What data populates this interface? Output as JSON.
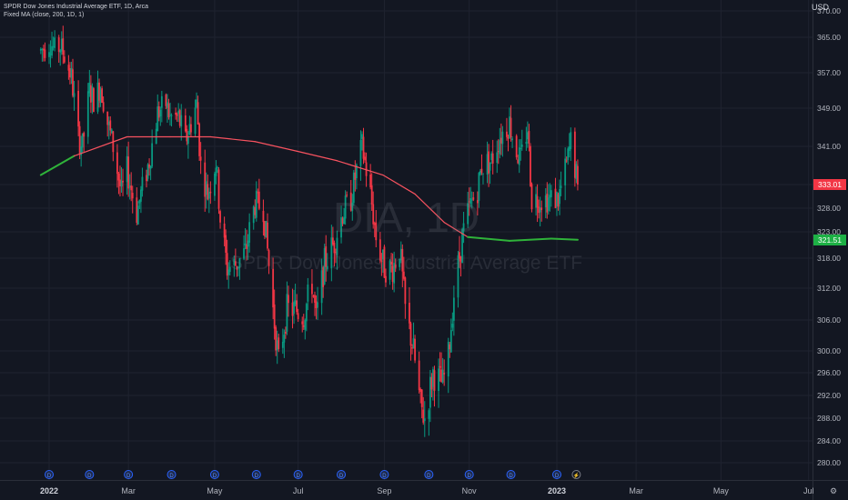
{
  "legend": {
    "title": "SPDR Dow Jones Industrial Average ETF, 1D, Arca",
    "indicator": "Fixed MA (close, 200, 1D, 1)"
  },
  "watermark": {
    "symbol": "DIA, 1D",
    "name": "SPDR Dow Jones Industrial Average ETF"
  },
  "currency": "USD",
  "last_price": {
    "value": "333.01",
    "color": "#f23645"
  },
  "ma_price": {
    "value": "321.51",
    "color": "#089981"
  },
  "colors": {
    "up": "#089981",
    "down": "#f23645",
    "ma_before": "#f7525f",
    "ma_after": "#2fb33a",
    "background": "#131722",
    "grid": "#1f2330",
    "axis_text": "#b2b5be"
  },
  "event_icon": "D",
  "settings_icon": "gear-icon",
  "chart_data": {
    "type": "candlestick",
    "title": "SPDR Dow Jones Industrial Average ETF, 1D, Arca",
    "y_axis": {
      "ticks": [
        280,
        284,
        288,
        292,
        296,
        300,
        306,
        312,
        318,
        323,
        328,
        333,
        341,
        349,
        357,
        365,
        370
      ],
      "tick_labels": [
        "280.00",
        "284.00",
        "288.00",
        "292.00",
        "296.00",
        "300.00",
        "306.00",
        "312.00",
        "318.00",
        "323.00",
        "328.00",
        "333.01",
        "341.00",
        "349.00",
        "357.00",
        "365.00",
        "370.00"
      ],
      "range": [
        277,
        371
      ]
    },
    "x_axis": {
      "labels": [
        "2022",
        "Mar",
        "May",
        "Jul",
        "Sep",
        "Nov",
        "2023",
        "Mar",
        "May",
        "Jul"
      ],
      "bold": [
        "2022",
        "2023"
      ],
      "label_dates": [
        "2022-01-03",
        "2022-03-01",
        "2022-05-02",
        "2022-07-01",
        "2022-09-01",
        "2022-11-01",
        "2023-01-03",
        "2023-03-01",
        "2023-05-01",
        "2023-07-03"
      ]
    },
    "series": [
      {
        "name": "DIA",
        "kind": "candles",
        "closes": [
          {
            "x": "2021-12-28",
            "y": 362
          },
          {
            "x": "2022-01-04",
            "y": 364
          },
          {
            "x": "2022-01-07",
            "y": 362
          },
          {
            "x": "2022-01-11",
            "y": 363
          },
          {
            "x": "2022-01-14",
            "y": 361
          },
          {
            "x": "2022-01-19",
            "y": 356
          },
          {
            "x": "2022-01-24",
            "y": 343
          },
          {
            "x": "2022-01-27",
            "y": 341
          },
          {
            "x": "2022-02-01",
            "y": 353
          },
          {
            "x": "2022-02-04",
            "y": 351
          },
          {
            "x": "2022-02-09",
            "y": 354
          },
          {
            "x": "2022-02-14",
            "y": 346
          },
          {
            "x": "2022-02-18",
            "y": 341
          },
          {
            "x": "2022-02-24",
            "y": 331
          },
          {
            "x": "2022-02-28",
            "y": 336
          },
          {
            "x": "2022-03-07",
            "y": 327
          },
          {
            "x": "2022-03-10",
            "y": 331
          },
          {
            "x": "2022-03-16",
            "y": 338
          },
          {
            "x": "2022-03-22",
            "y": 348
          },
          {
            "x": "2022-03-28",
            "y": 350
          },
          {
            "x": "2022-03-31",
            "y": 347
          },
          {
            "x": "2022-04-06",
            "y": 347
          },
          {
            "x": "2022-04-11",
            "y": 342
          },
          {
            "x": "2022-04-19",
            "y": 350
          },
          {
            "x": "2022-04-22",
            "y": 337
          },
          {
            "x": "2022-04-27",
            "y": 331
          },
          {
            "x": "2022-05-03",
            "y": 338
          },
          {
            "x": "2022-05-06",
            "y": 326
          },
          {
            "x": "2022-05-11",
            "y": 316
          },
          {
            "x": "2022-05-18",
            "y": 317
          },
          {
            "x": "2022-05-24",
            "y": 319
          },
          {
            "x": "2022-05-31",
            "y": 329
          },
          {
            "x": "2022-06-06",
            "y": 328
          },
          {
            "x": "2022-06-13",
            "y": 308
          },
          {
            "x": "2022-06-17",
            "y": 298
          },
          {
            "x": "2022-06-23",
            "y": 308
          },
          {
            "x": "2022-06-29",
            "y": 308
          },
          {
            "x": "2022-07-05",
            "y": 307
          },
          {
            "x": "2022-07-11",
            "y": 313
          },
          {
            "x": "2022-07-14",
            "y": 306
          },
          {
            "x": "2022-07-20",
            "y": 317
          },
          {
            "x": "2022-07-27",
            "y": 321
          },
          {
            "x": "2022-08-02",
            "y": 327
          },
          {
            "x": "2022-08-08",
            "y": 330
          },
          {
            "x": "2022-08-12",
            "y": 336
          },
          {
            "x": "2022-08-16",
            "y": 341
          },
          {
            "x": "2022-08-22",
            "y": 331
          },
          {
            "x": "2022-08-26",
            "y": 322
          },
          {
            "x": "2022-09-01",
            "y": 316
          },
          {
            "x": "2022-09-07",
            "y": 316
          },
          {
            "x": "2022-09-12",
            "y": 320
          },
          {
            "x": "2022-09-16",
            "y": 308
          },
          {
            "x": "2022-09-22",
            "y": 300
          },
          {
            "x": "2022-09-27",
            "y": 290
          },
          {
            "x": "2022-09-30",
            "y": 288
          },
          {
            "x": "2022-10-06",
            "y": 296
          },
          {
            "x": "2022-10-13",
            "y": 294
          },
          {
            "x": "2022-10-17",
            "y": 299
          },
          {
            "x": "2022-10-21",
            "y": 311
          },
          {
            "x": "2022-10-27",
            "y": 322
          },
          {
            "x": "2022-11-01",
            "y": 328
          },
          {
            "x": "2022-11-07",
            "y": 332
          },
          {
            "x": "2022-11-10",
            "y": 337
          },
          {
            "x": "2022-11-17",
            "y": 338
          },
          {
            "x": "2022-11-23",
            "y": 343
          },
          {
            "x": "2022-11-30",
            "y": 346
          },
          {
            "x": "2022-12-05",
            "y": 340
          },
          {
            "x": "2022-12-08",
            "y": 338
          },
          {
            "x": "2022-12-13",
            "y": 345
          },
          {
            "x": "2022-12-16",
            "y": 330
          },
          {
            "x": "2022-12-22",
            "y": 330
          },
          {
            "x": "2022-12-28",
            "y": 330
          },
          {
            "x": "2023-01-04",
            "y": 330
          },
          {
            "x": "2023-01-10",
            "y": 337
          },
          {
            "x": "2023-01-13",
            "y": 342
          },
          {
            "x": "2023-01-18",
            "y": 333
          }
        ]
      },
      {
        "name": "Fixed MA (close, 200, 1D, 1)",
        "kind": "line",
        "values": [
          {
            "x": "2021-12-28",
            "y": 335
          },
          {
            "x": "2022-01-21",
            "y": 339
          },
          {
            "x": "2022-02-28",
            "y": 343
          },
          {
            "x": "2022-03-31",
            "y": 343
          },
          {
            "x": "2022-04-29",
            "y": 343
          },
          {
            "x": "2022-05-31",
            "y": 342
          },
          {
            "x": "2022-06-30",
            "y": 340
          },
          {
            "x": "2022-07-29",
            "y": 338
          },
          {
            "x": "2022-08-31",
            "y": 335
          },
          {
            "x": "2022-09-23",
            "y": 331
          },
          {
            "x": "2022-10-14",
            "y": 325
          },
          {
            "x": "2022-10-31",
            "y": 322
          },
          {
            "x": "2022-11-30",
            "y": 321.3
          },
          {
            "x": "2022-12-30",
            "y": 321.7
          },
          {
            "x": "2023-01-18",
            "y": 321.5
          }
        ]
      }
    ],
    "events": [
      "2022-01-03",
      "2022-02-01",
      "2022-03-01",
      "2022-04-01",
      "2022-05-02",
      "2022-06-01",
      "2022-07-01",
      "2022-08-01",
      "2022-09-01",
      "2022-10-03",
      "2022-11-01",
      "2022-12-01",
      "2023-01-03",
      "2023-01-17"
    ],
    "grid": true,
    "legend_position": "top-left"
  }
}
